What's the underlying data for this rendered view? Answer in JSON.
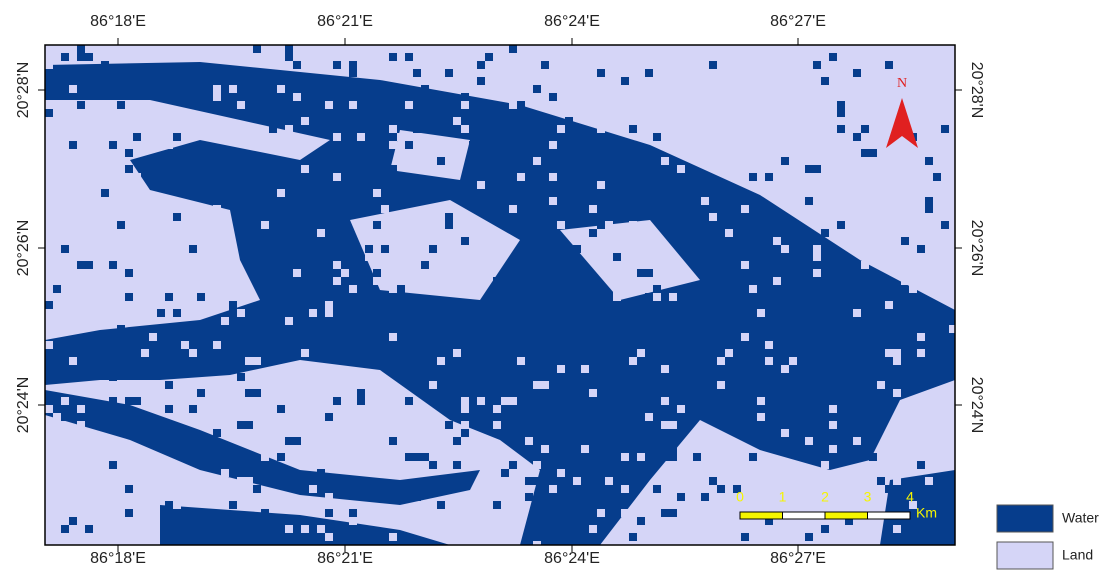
{
  "map": {
    "lon_ticks": [
      "86°18'E",
      "86°21'E",
      "86°24'E",
      "86°27'E"
    ],
    "lat_ticks": [
      "20°28'N",
      "20°26'N",
      "20°24'N"
    ],
    "north_label": "N",
    "scale": {
      "labels": [
        "0",
        "1",
        "2",
        "3",
        "4"
      ],
      "unit": "Km"
    },
    "legend": [
      {
        "label": "Water",
        "color": "#063d8c"
      },
      {
        "label": "Land",
        "color": "#d5d5f7"
      }
    ]
  }
}
